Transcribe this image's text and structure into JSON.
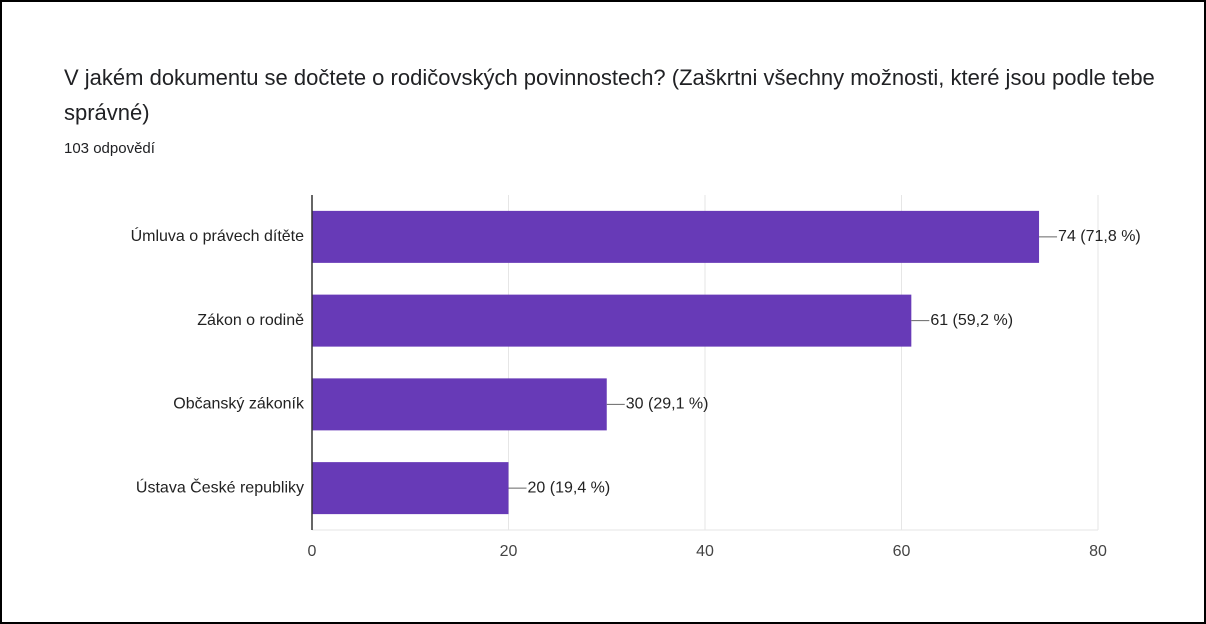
{
  "chart_data": {
    "type": "bar",
    "orientation": "horizontal",
    "title": "V jakém dokumentu se dočtete o rodičovských povinnostech? (Zaškrtni všechny možnosti, které jsou podle tebe správné)",
    "subtitle": "103 odpovědí",
    "categories": [
      "Úmluva o právech dítěte",
      "Zákon o rodině",
      "Občanský zákoník",
      "Ústava České republiky"
    ],
    "values": [
      74,
      61,
      30,
      20
    ],
    "value_labels": [
      "74 (71,8 %)",
      "61 (59,2 %)",
      "30 (29,1 %)",
      "20 (19,4 %)"
    ],
    "color": "#673ab7",
    "xlim": [
      0,
      80
    ],
    "xticks": [
      0,
      20,
      40,
      60,
      80
    ],
    "grid": true
  }
}
